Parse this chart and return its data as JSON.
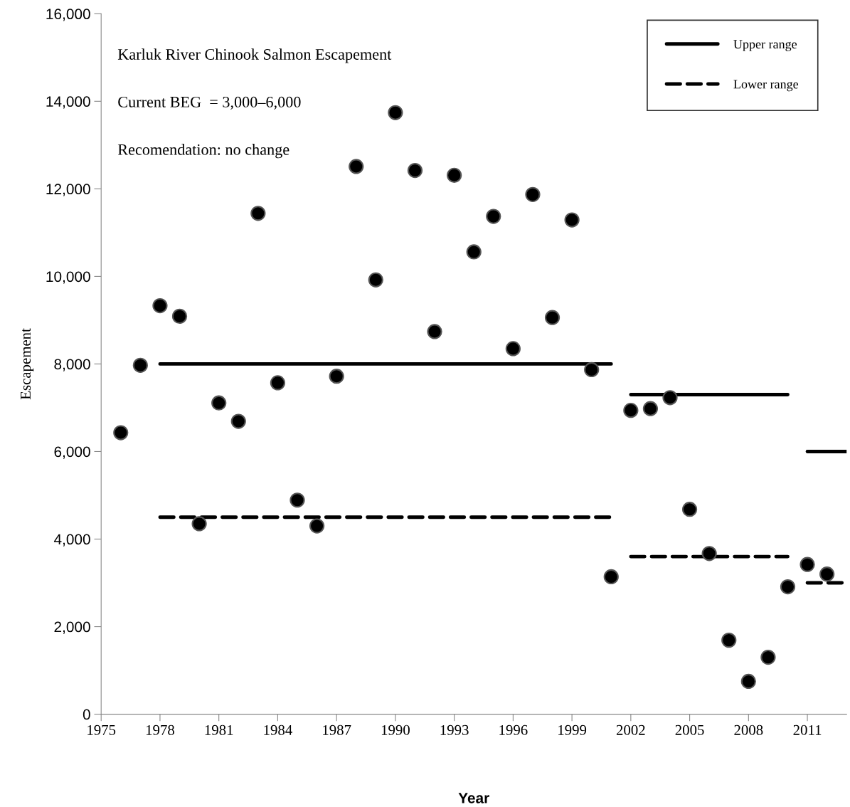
{
  "chart_data": {
    "type": "scatter",
    "xlabel": "Year",
    "ylabel": "Escapement",
    "annotations": [
      "Karluk River Chinook Salmon Escapement",
      "Current BEG  = 3,000–6,000",
      "Recomendation: no change"
    ],
    "x": [
      1976,
      1977,
      1978,
      1979,
      1980,
      1981,
      1982,
      1983,
      1984,
      1985,
      1986,
      1987,
      1988,
      1989,
      1990,
      1991,
      1992,
      1993,
      1994,
      1995,
      1996,
      1997,
      1998,
      1999,
      2000,
      2001,
      2002,
      2003,
      2004,
      2005,
      2006,
      2007,
      2008,
      2009,
      2010,
      2011,
      2012
    ],
    "series": [
      {
        "color": "#000000",
        "marker": "circle",
        "values": [
          6430,
          7970,
          9330,
          9090,
          4350,
          7110,
          6690,
          11440,
          7570,
          4890,
          4300,
          7720,
          12510,
          9920,
          13740,
          12420,
          8740,
          12310,
          10560,
          11370,
          8350,
          11870,
          9060,
          11290,
          7870,
          3140,
          6940,
          6980,
          7230,
          4680,
          3670,
          1690,
          750,
          1300,
          2910,
          3420,
          3200
        ]
      },
      {
        "type": "line",
        "name": "Upper range",
        "color": "#000000",
        "line_style": "solid",
        "x": [
          1978,
          2001,
          2001.5,
          2002,
          2010,
          2010.5,
          2011,
          2013
        ],
        "values": [
          8000,
          8000,
          null,
          7300,
          7300,
          null,
          6000,
          6000
        ]
      },
      {
        "type": "line",
        "name": "Lower range",
        "color": "#000000",
        "line_style": "dashed",
        "x": [
          1978,
          2001,
          2001.5,
          2002,
          2010,
          2010.5,
          2011,
          2013
        ],
        "values": [
          4500,
          4500,
          null,
          3600,
          3600,
          null,
          3000,
          3000
        ]
      }
    ],
    "xlim": [
      1975,
      2013
    ],
    "xticks": [
      1975,
      1978,
      1981,
      1984,
      1987,
      1990,
      1993,
      1996,
      1999,
      2002,
      2005,
      2008,
      2011
    ],
    "ylim": [
      0,
      16000
    ],
    "yticks": [
      {
        "value": 0,
        "label": "0"
      },
      {
        "value": 2000,
        "label": "2,000"
      },
      {
        "value": 4000,
        "label": "4,000"
      },
      {
        "value": 6000,
        "label": "6,000"
      },
      {
        "value": 8000,
        "label": "8,000"
      },
      {
        "value": 10000,
        "label": "10,000"
      },
      {
        "value": 12000,
        "label": "12,000"
      },
      {
        "value": 14000,
        "label": "14,000"
      },
      {
        "value": 16000,
        "label": "16,000"
      }
    ],
    "grid": false,
    "legend": "top right"
  }
}
